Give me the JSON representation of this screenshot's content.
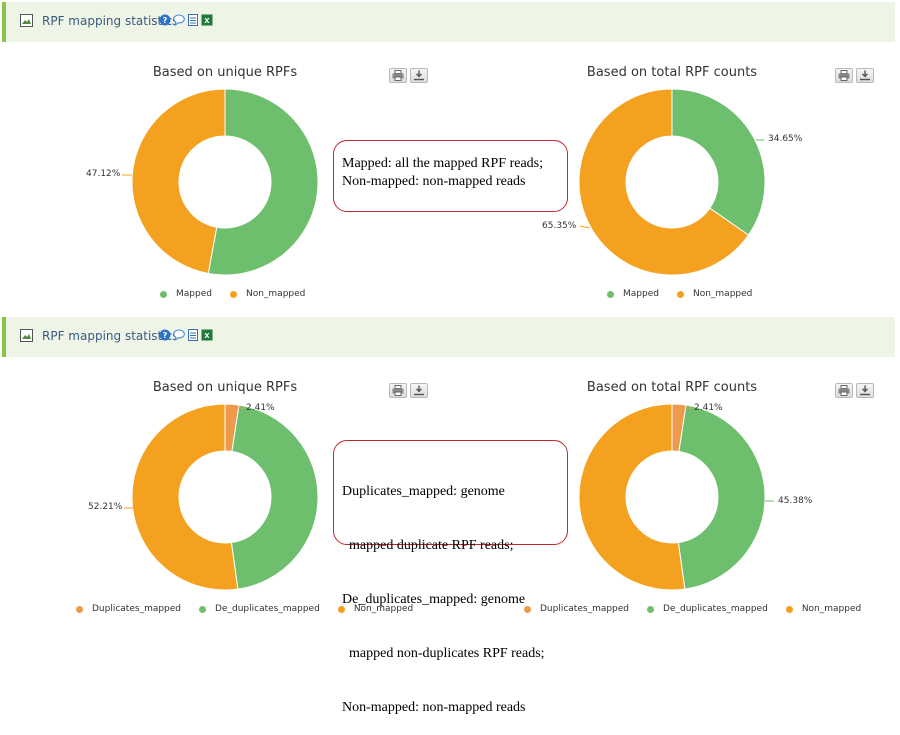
{
  "sections": [
    {
      "header_title": "RPF mapping statistics",
      "note_lines": [
        "Mapped: all the mapped RPF reads;",
        "Non-mapped: non-mapped reads"
      ]
    },
    {
      "header_title": "RPF mapping statistics",
      "note_lines": [
        "Duplicates_mapped: genome",
        "  mapped duplicate RPF reads;",
        "De_duplicates_mapped: genome",
        "  mapped non-duplicates RPF reads;",
        "Non-mapped: non-mapped reads"
      ]
    }
  ],
  "colors": {
    "mapped": "#6dbf6d",
    "non_mapped": "#f4a11f",
    "duplicates_mapped": "#ee9a4d",
    "header_bg": "#eef5e7",
    "note_border": "#c0282d"
  },
  "icons": [
    "image-icon",
    "help-icon",
    "comment-icon",
    "document-icon",
    "excel-icon",
    "print-icon",
    "download-icon"
  ],
  "chart_data": [
    {
      "type": "pie",
      "title": "Based on unique RPFs",
      "slices": [
        {
          "label": "Mapped",
          "value": 52.88,
          "color": "#6dbf6d"
        },
        {
          "label": "Non_mapped",
          "value": 47.12,
          "color": "#f4a11f"
        }
      ],
      "data_labels": [
        {
          "series": "Non_mapped",
          "text": "47.12%"
        }
      ],
      "legend": [
        "Mapped",
        "Non_mapped"
      ]
    },
    {
      "type": "pie",
      "title": "Based on total RPF counts",
      "slices": [
        {
          "label": "Mapped",
          "value": 34.65,
          "color": "#6dbf6d"
        },
        {
          "label": "Non_mapped",
          "value": 65.35,
          "color": "#f4a11f"
        }
      ],
      "data_labels": [
        {
          "series": "Mapped",
          "text": "34.65%"
        },
        {
          "series": "Non_mapped",
          "text": "65.35%"
        }
      ],
      "legend": [
        "Mapped",
        "Non_mapped"
      ]
    },
    {
      "type": "pie",
      "title": "Based on unique RPFs",
      "slices": [
        {
          "label": "Duplicates_mapped",
          "value": 2.41,
          "color": "#ee9a4d"
        },
        {
          "label": "De_duplicates_mapped",
          "value": 45.38,
          "color": "#6dbf6d"
        },
        {
          "label": "Non_mapped",
          "value": 52.21,
          "color": "#f4a11f"
        }
      ],
      "data_labels": [
        {
          "series": "Duplicates_mapped",
          "text": "2.41%"
        },
        {
          "series": "Non_mapped",
          "text": "52.21%"
        }
      ],
      "legend": [
        "Duplicates_mapped",
        "De_duplicates_mapped",
        "Non_mapped"
      ]
    },
    {
      "type": "pie",
      "title": "Based on total RPF counts",
      "slices": [
        {
          "label": "Duplicates_mapped",
          "value": 2.41,
          "color": "#ee9a4d"
        },
        {
          "label": "De_duplicates_mapped",
          "value": 45.38,
          "color": "#6dbf6d"
        },
        {
          "label": "Non_mapped",
          "value": 52.21,
          "color": "#f4a11f"
        }
      ],
      "data_labels": [
        {
          "series": "Duplicates_mapped",
          "text": "2.41%"
        },
        {
          "series": "De_duplicates_mapped",
          "text": "45.38%"
        }
      ],
      "legend": [
        "Duplicates_mapped",
        "De_duplicates_mapped",
        "Non_mapped"
      ]
    }
  ]
}
